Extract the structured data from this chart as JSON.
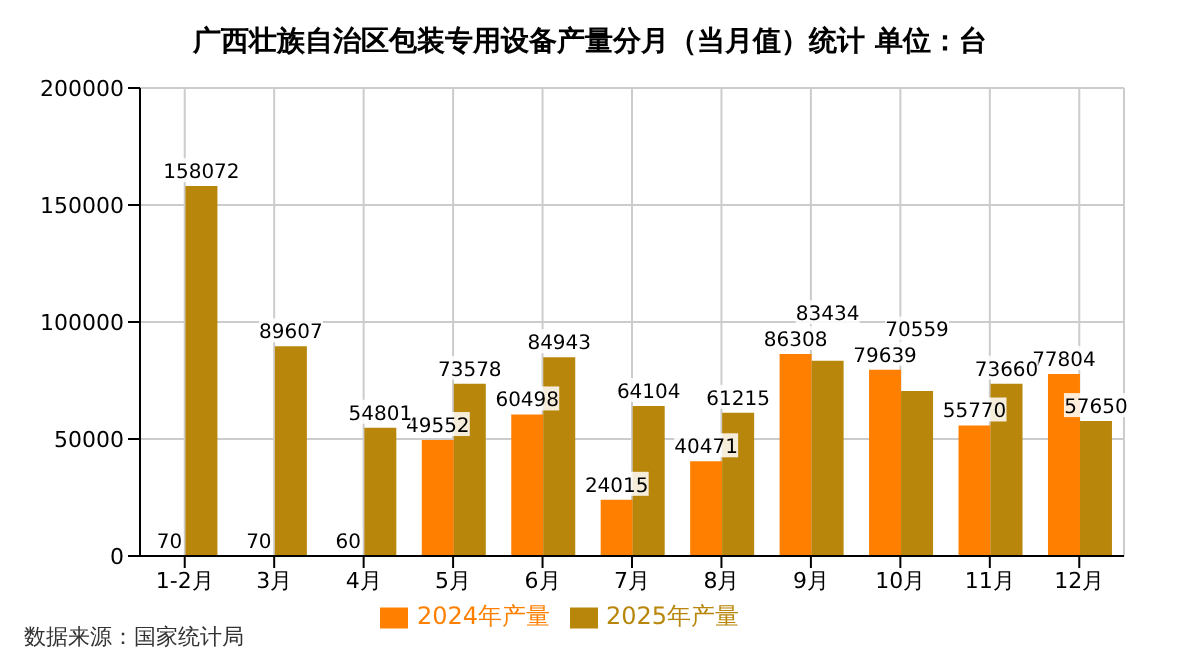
{
  "chart_data": {
    "type": "bar",
    "title": "广西壮族自治区包装专用设备产量分月（当月值）统计 单位：台",
    "categories": [
      "1-2月",
      "3月",
      "4月",
      "5月",
      "6月",
      "7月",
      "8月",
      "9月",
      "10月",
      "11月",
      "12月"
    ],
    "series": [
      {
        "name": "2024年产量",
        "color": "#ff8000",
        "values": [
          70,
          70,
          60,
          49552,
          60498,
          24015,
          40471,
          86308,
          79639,
          55770,
          77804
        ]
      },
      {
        "name": "2025年产量",
        "color": "#b8860b",
        "values": [
          158072,
          89607,
          54801,
          73578,
          84943,
          64104,
          61215,
          83434,
          70559,
          73660,
          57650
        ]
      }
    ],
    "ylim": [
      0,
      200000
    ],
    "yticks": [
      0,
      50000,
      100000,
      150000,
      200000
    ],
    "grid": true,
    "legend": "bottom",
    "data_labels": true,
    "annotations": [
      "数据来源：国家统计局"
    ]
  }
}
